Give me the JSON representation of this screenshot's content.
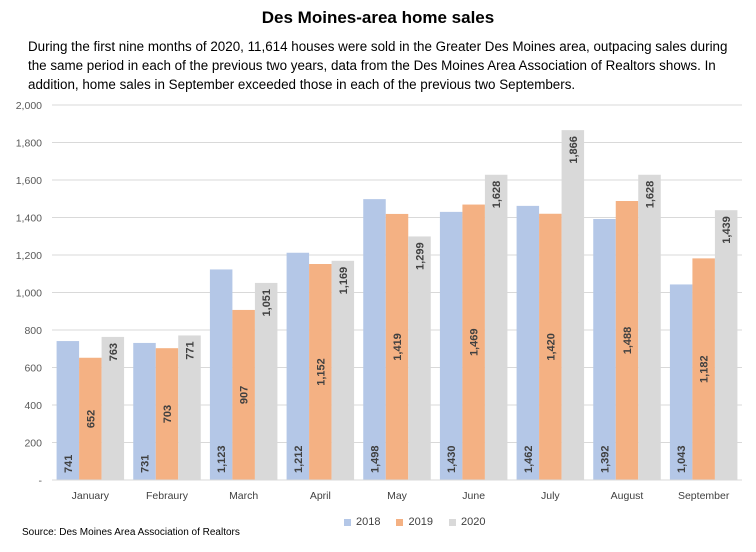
{
  "title": "Des Moines-area home sales",
  "subtitle": "During the first nine months of 2020, 11,614 houses were sold in the Greater Des Moines area, outpacing sales during the same period in each of the previous two years, data from the Des Moines Area Association of Realtors shows. In addition, home sales in September exceeded those in each of the previous two Septembers.",
  "source": "Source: Des Moines Area Association of Realtors",
  "chart_data": {
    "type": "bar",
    "categories": [
      "January",
      "Febraury",
      "March",
      "April",
      "May",
      "June",
      "July",
      "August",
      "September"
    ],
    "series": [
      {
        "name": "2018",
        "color": "#b4c7e7",
        "values": [
          741,
          731,
          1123,
          1212,
          1498,
          1430,
          1462,
          1392,
          1043
        ]
      },
      {
        "name": "2019",
        "color": "#f4b183",
        "values": [
          652,
          703,
          907,
          1152,
          1419,
          1469,
          1420,
          1488,
          1182
        ]
      },
      {
        "name": "2020",
        "color": "#d9d9d9",
        "values": [
          763,
          771,
          1051,
          1169,
          1299,
          1628,
          1866,
          1628,
          1439
        ]
      }
    ],
    "ylim": [
      0,
      2000
    ],
    "yticks": [
      0,
      200,
      400,
      600,
      800,
      1000,
      1200,
      1400,
      1600,
      1800,
      2000
    ],
    "ytick_labels": [
      "-",
      "200",
      "400",
      "600",
      "800",
      "1,000",
      "1,200",
      "1,400",
      "1,600",
      "1,800",
      "2,000"
    ],
    "data_labels": [
      [
        "741",
        "731",
        "1,123",
        "1,212",
        "1,498",
        "1,430",
        "1,462",
        "1,392",
        "1,043"
      ],
      [
        "652",
        "703",
        "907",
        "1,152",
        "1,419",
        "1,469",
        "1,420",
        "1,488",
        "1,182"
      ],
      [
        "763",
        "771",
        "1,051",
        "1,169",
        "1,299",
        "1,628",
        "1,866",
        "1,628",
        "1,439"
      ]
    ],
    "grid": true,
    "legend_position": "bottom"
  }
}
